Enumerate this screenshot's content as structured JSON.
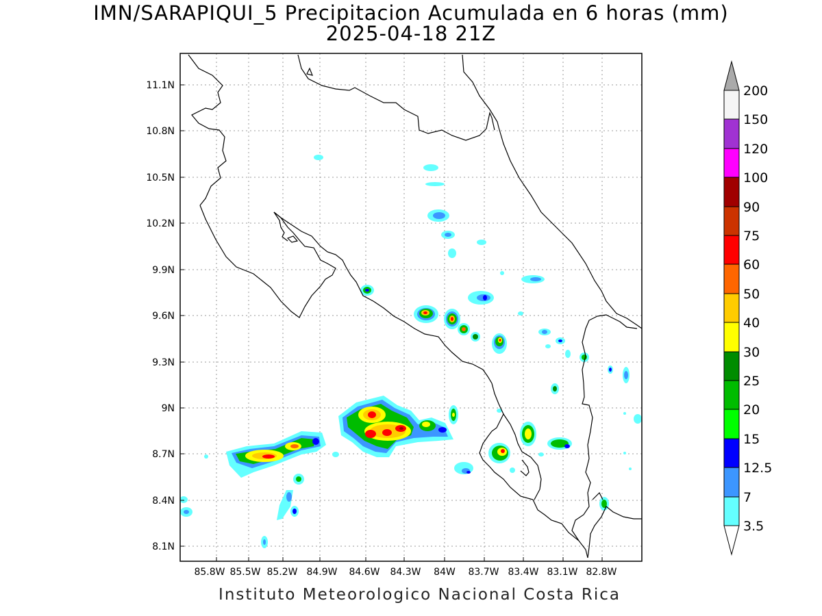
{
  "title": {
    "line1": "IMN/SARAPIQUI_5 Precipitacion Acumulada en 6 horas (mm)",
    "line2": "2025-04-18 21Z"
  },
  "credit": "Instituto Meteorologico Nacional Costa Rica",
  "map": {
    "lon_ticks": [
      "85.8W",
      "85.5W",
      "85.2W",
      "84.9W",
      "84.6W",
      "84.3W",
      "84W",
      "83.7W",
      "83.4W",
      "83.1W",
      "82.8W"
    ],
    "lat_ticks": [
      "11.1N",
      "10.8N",
      "10.5N",
      "10.2N",
      "9.9N",
      "9.6N",
      "9.3N",
      "9N",
      "8.7N",
      "8.4N",
      "8.1N"
    ],
    "grid": "dotted"
  },
  "colorbar": {
    "labels": [
      "200",
      "150",
      "120",
      "100",
      "90",
      "75",
      "60",
      "50",
      "40",
      "30",
      "25",
      "20",
      "15",
      "12.5",
      "7",
      "3.5"
    ],
    "colors": [
      "#aaaaaa",
      "#f5f5f5",
      "#a032d2",
      "#ff00ff",
      "#a00000",
      "#cc3300",
      "#ff0000",
      "#ff6600",
      "#ffcc00",
      "#ffff00",
      "#008c00",
      "#00bc00",
      "#00ff00",
      "#0000ff",
      "#3c96ff",
      "#64ffff",
      "#ffffff"
    ]
  }
}
